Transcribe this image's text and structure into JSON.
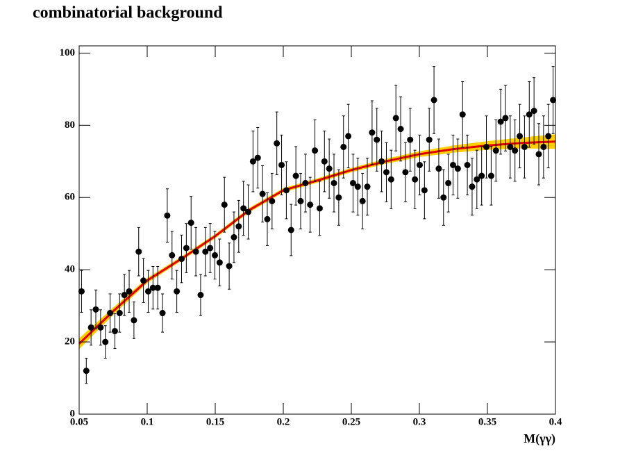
{
  "chart_data": {
    "type": "scatter",
    "title": "combinatorial background",
    "x_label": "M(γγ)",
    "xlim": [
      0.05,
      0.4
    ],
    "xticks": [
      0.05,
      0.1,
      0.15,
      0.2,
      0.25,
      0.3,
      0.35,
      0.4
    ],
    "ylim": [
      0,
      102
    ],
    "yticks": [
      0,
      20,
      40,
      60,
      80,
      100
    ],
    "series": [
      {
        "color": "#000000",
        "x": [
          0.05175,
          0.05525,
          0.05875,
          0.06225,
          0.06575,
          0.06925,
          0.07275,
          0.07625,
          0.07975,
          0.08325,
          0.08675,
          0.09025,
          0.09375,
          0.09725,
          0.10075,
          0.10425,
          0.10775,
          0.11125,
          0.11475,
          0.11825,
          0.12175,
          0.12525,
          0.12875,
          0.13225,
          0.13575,
          0.13925,
          0.14275,
          0.14625,
          0.14975,
          0.15325,
          0.15675,
          0.16025,
          0.16375,
          0.16725,
          0.17075,
          0.17425,
          0.17775,
          0.18125,
          0.18475,
          0.18825,
          0.19175,
          0.19525,
          0.19875,
          0.20225,
          0.20575,
          0.20925,
          0.21275,
          0.21625,
          0.21975,
          0.22325,
          0.22675,
          0.23025,
          0.23375,
          0.23725,
          0.24075,
          0.24425,
          0.24775,
          0.25125,
          0.25475,
          0.25825,
          0.26175,
          0.26525,
          0.26875,
          0.27225,
          0.27575,
          0.27925,
          0.28275,
          0.28625,
          0.28975,
          0.29325,
          0.29675,
          0.30025,
          0.30375,
          0.30725,
          0.31075,
          0.31425,
          0.31775,
          0.32125,
          0.32475,
          0.32825,
          0.33175,
          0.33525,
          0.33875,
          0.34225,
          0.34575,
          0.34925,
          0.35275,
          0.35625,
          0.35975,
          0.36325,
          0.36675,
          0.37025,
          0.37375,
          0.37725,
          0.38075,
          0.38425,
          0.38775,
          0.39125,
          0.39475,
          0.39825
        ],
        "values": [
          34,
          12,
          24,
          29,
          24,
          20,
          28,
          23,
          28,
          33,
          34,
          26,
          45,
          37,
          34,
          35,
          35,
          28,
          55,
          44,
          34,
          43,
          46,
          53,
          45,
          33,
          45,
          46,
          44,
          42,
          58,
          41,
          49,
          52,
          57,
          56,
          70,
          71,
          61,
          54,
          59,
          75,
          69,
          62,
          51,
          66,
          59,
          64,
          58,
          73,
          57,
          70,
          68,
          64,
          60,
          74,
          77,
          64,
          63,
          59,
          63,
          78,
          76,
          70,
          67,
          65,
          82,
          79,
          67,
          76,
          65,
          69,
          62,
          76,
          87,
          68,
          60,
          64,
          69,
          68,
          83,
          69,
          63,
          65,
          66,
          74,
          66,
          73,
          81,
          82,
          74,
          73,
          77,
          74,
          83,
          84,
          72,
          74,
          77,
          87
        ],
        "errors": [
          5.8,
          3.5,
          4.9,
          5.4,
          4.9,
          4.5,
          5.3,
          4.8,
          5.3,
          5.7,
          5.8,
          5.1,
          6.7,
          6.1,
          5.8,
          5.9,
          5.9,
          5.3,
          7.4,
          6.6,
          5.8,
          6.6,
          6.8,
          7.3,
          6.7,
          5.7,
          6.7,
          6.8,
          6.6,
          6.5,
          7.6,
          6.4,
          7.0,
          7.2,
          7.5,
          7.5,
          8.4,
          8.4,
          7.8,
          7.3,
          7.7,
          8.7,
          8.3,
          7.9,
          7.1,
          8.1,
          7.7,
          8.0,
          7.6,
          8.5,
          7.5,
          8.4,
          8.2,
          8.0,
          7.7,
          8.6,
          8.8,
          8.0,
          7.9,
          7.7,
          7.9,
          8.8,
          8.7,
          8.4,
          8.2,
          8.1,
          9.1,
          8.9,
          8.2,
          8.7,
          8.1,
          8.3,
          7.9,
          8.7,
          9.3,
          8.2,
          7.7,
          8.0,
          8.3,
          8.2,
          9.1,
          8.3,
          7.9,
          8.1,
          8.1,
          8.6,
          8.1,
          8.5,
          9.0,
          9.1,
          8.6,
          8.5,
          8.8,
          8.6,
          9.1,
          9.2,
          8.5,
          8.6,
          8.8,
          9.3
        ]
      }
    ],
    "fit": {
      "color": "#e00000",
      "band_color": "#ffcc00",
      "x": [
        0.05,
        0.075,
        0.1,
        0.125,
        0.15,
        0.175,
        0.2,
        0.225,
        0.25,
        0.275,
        0.3,
        0.325,
        0.35,
        0.375,
        0.4
      ],
      "values": [
        19.5,
        28.5,
        37,
        43,
        49.3,
        56.5,
        62,
        64.7,
        67.6,
        70,
        72,
        73.4,
        74.4,
        75.1,
        75.5
      ],
      "band_lower": [
        18,
        27.5,
        36.3,
        42.4,
        48.7,
        55.9,
        61.4,
        64.1,
        67,
        69.3,
        71.2,
        72.4,
        73.2,
        73.6,
        73.5
      ],
      "band_upper": [
        21,
        29.5,
        37.7,
        43.6,
        49.9,
        57.1,
        62.6,
        65.3,
        68.2,
        70.7,
        72.8,
        74.4,
        75.6,
        76.6,
        77.5
      ]
    }
  }
}
